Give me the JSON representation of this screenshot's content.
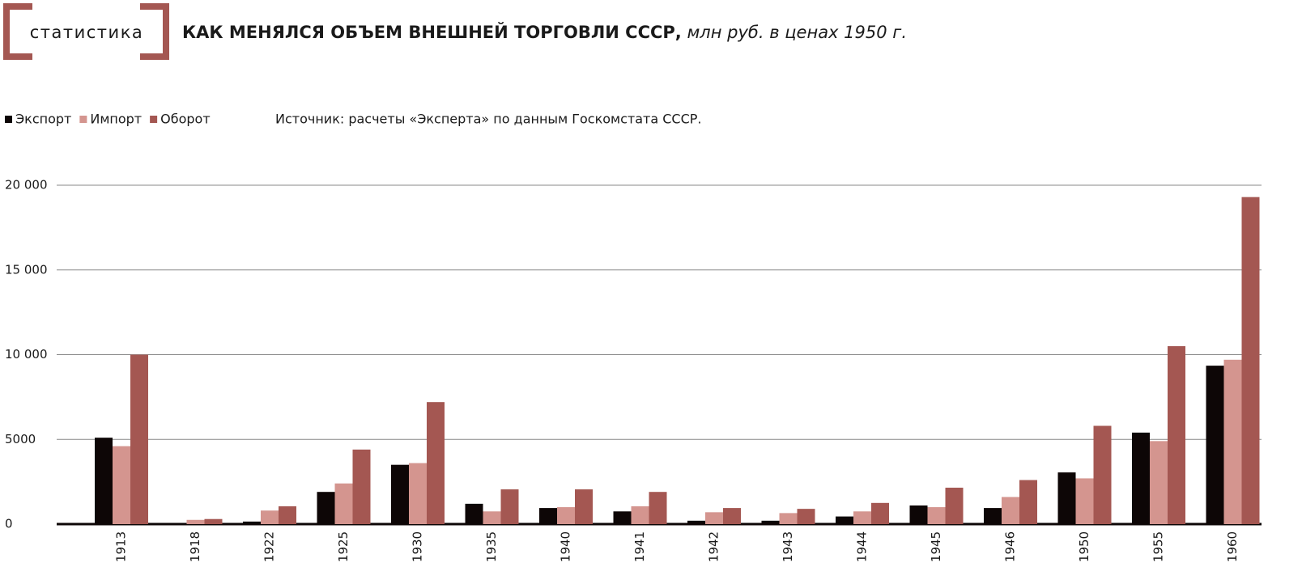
{
  "chart_data": {
    "type": "bar",
    "rubric": "статистика",
    "title": "КАК МЕНЯЛСЯ ОБЪЕМ ВНЕШНЕЙ ТОРГОВЛИ СССР,",
    "subtitle": "млн руб. в ценах 1950 г.",
    "source": "Источник: расчеты «Эксперта» по данным Госкомстата СССР.",
    "categories": [
      "1913",
      "1918",
      "1922",
      "1925",
      "1930",
      "1935",
      "1940",
      "1941",
      "1942",
      "1943",
      "1944",
      "1945",
      "1946",
      "1950",
      "1955",
      "1960"
    ],
    "series": [
      {
        "name": "Экспорт",
        "color": "#0d0606",
        "values": [
          5100,
          50,
          150,
          1900,
          3500,
          1200,
          950,
          750,
          200,
          200,
          450,
          1100,
          950,
          3050,
          5400,
          9350
        ]
      },
      {
        "name": "Импорт",
        "color": "#d4958f",
        "values": [
          4600,
          250,
          800,
          2400,
          3600,
          750,
          1000,
          1050,
          700,
          650,
          750,
          1000,
          1600,
          2700,
          4900,
          9700
        ]
      },
      {
        "name": "Оборот",
        "color": "#a45752",
        "values": [
          10000,
          300,
          1050,
          4400,
          7200,
          2050,
          2050,
          1900,
          950,
          900,
          1250,
          2150,
          2600,
          5800,
          10500,
          19300
        ]
      }
    ],
    "ylim": [
      0,
      20000
    ],
    "yticks": [
      {
        "value": 20000,
        "label": "20 000"
      },
      {
        "value": 15000,
        "label": "15 000"
      },
      {
        "value": 10000,
        "label": "10 000"
      },
      5000,
      0
    ],
    "grid": true
  }
}
